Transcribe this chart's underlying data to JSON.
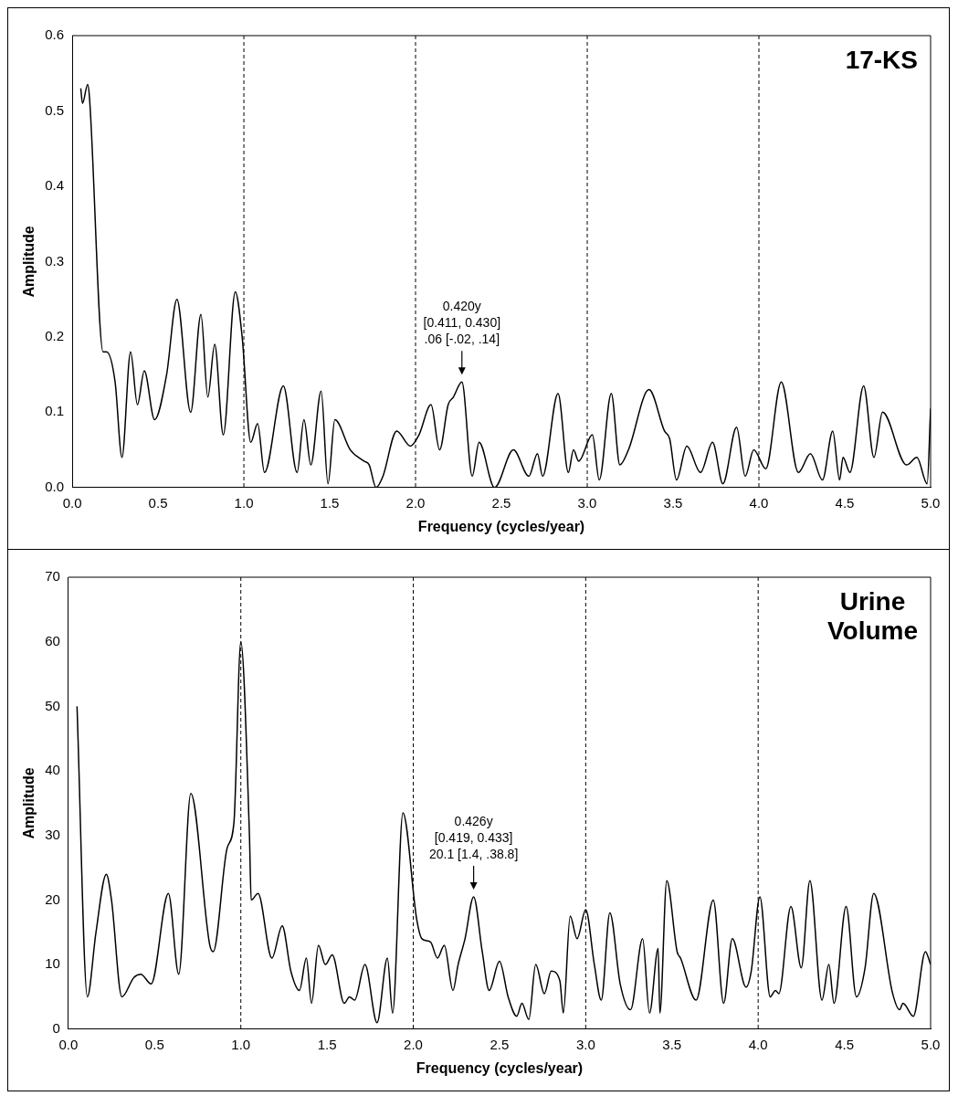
{
  "chart_data": [
    {
      "type": "line",
      "title": "17-KS",
      "xlabel": "Frequency (cycles/year)",
      "ylabel": "Amplitude",
      "x": [
        0.05,
        0.06,
        0.09,
        0.1,
        0.18,
        0.2,
        0.25,
        0.29,
        0.34,
        0.38,
        0.42,
        0.48,
        0.55,
        0.61,
        0.69,
        0.75,
        0.79,
        0.83,
        0.88,
        0.95,
        0.99,
        1.04,
        1.08,
        1.12,
        1.23,
        1.31,
        1.35,
        1.39,
        1.45,
        1.49,
        1.53,
        1.62,
        1.7,
        1.73,
        1.77,
        1.81,
        1.89,
        1.97,
        2.02,
        2.09,
        2.14,
        2.19,
        2.22,
        2.27,
        2.33,
        2.37,
        2.46,
        2.57,
        2.66,
        2.71,
        2.74,
        2.83,
        2.89,
        2.92,
        2.95,
        3.03,
        3.07,
        3.14,
        3.19,
        3.24,
        3.36,
        3.45,
        3.48,
        3.52,
        3.58,
        3.66,
        3.73,
        3.79,
        3.87,
        3.92,
        3.97,
        4.04,
        4.13,
        4.23,
        4.3,
        4.37,
        4.43,
        4.47,
        4.49,
        4.53,
        4.61,
        4.67,
        4.72,
        4.86,
        4.92,
        4.98,
        5.0
      ],
      "series": [
        {
          "color": "#000000",
          "values": [
            0.53,
            0.51,
            0.535,
            0.52,
            0.18,
            0.18,
            0.14,
            0.04,
            0.18,
            0.11,
            0.155,
            0.09,
            0.15,
            0.25,
            0.1,
            0.23,
            0.12,
            0.19,
            0.07,
            0.26,
            0.2,
            0.06,
            0.085,
            0.02,
            0.135,
            0.02,
            0.09,
            0.03,
            0.128,
            0.005,
            0.09,
            0.05,
            0.035,
            0.03,
            0.0,
            0.015,
            0.075,
            0.055,
            0.07,
            0.11,
            0.05,
            0.11,
            0.12,
            0.14,
            0.015,
            0.06,
            0.0,
            0.05,
            0.015,
            0.045,
            0.015,
            0.125,
            0.02,
            0.05,
            0.035,
            0.07,
            0.01,
            0.125,
            0.03,
            0.05,
            0.13,
            0.075,
            0.065,
            0.01,
            0.055,
            0.02,
            0.06,
            0.005,
            0.08,
            0.015,
            0.05,
            0.025,
            0.14,
            0.02,
            0.045,
            0.01,
            0.075,
            0.01,
            0.04,
            0.02,
            0.135,
            0.04,
            0.1,
            0.03,
            0.04,
            0.005,
            0.105
          ]
        }
      ],
      "xlim": [
        0,
        5
      ],
      "xticks": [
        {
          "value": 0,
          "label": "0.0"
        },
        0.5,
        {
          "value": 1,
          "label": "1.0"
        },
        1.5,
        {
          "value": 2,
          "label": "2.0"
        },
        2.5,
        {
          "value": 3,
          "label": "3.0"
        },
        3.5,
        {
          "value": 4,
          "label": "4.0"
        },
        4.5,
        {
          "value": 5,
          "label": "5.0"
        }
      ],
      "ylim": [
        0,
        0.6
      ],
      "yticks": [
        {
          "value": 0,
          "label": "0.0"
        },
        0.1,
        0.2,
        0.3,
        0.4,
        0.5,
        0.6
      ],
      "ref_lines": [
        {
          "axis": "x",
          "value": 1,
          "line_style": "dashed"
        },
        {
          "axis": "x",
          "value": 2,
          "line_style": "dashed"
        },
        {
          "axis": "x",
          "value": 3,
          "line_style": "dashed"
        },
        {
          "axis": "x",
          "value": 4,
          "line_style": "dashed"
        }
      ],
      "annotations": [
        {
          "text": "0.420y\n[0.411, 0.430]\n.06 [-.02, .14]",
          "x": 2.27,
          "y": 0.14
        }
      ],
      "grid": false,
      "legend": false,
      "marker": "none",
      "line_style": "solid"
    },
    {
      "type": "line",
      "title": "Urine\nVolume",
      "xlabel": "Frequency (cycles/year)",
      "ylabel": "Amplitude",
      "x": [
        0.05,
        0.11,
        0.16,
        0.22,
        0.25,
        0.31,
        0.38,
        0.42,
        0.48,
        0.58,
        0.64,
        0.71,
        0.82,
        0.84,
        0.92,
        0.96,
        1.0,
        1.05,
        1.06,
        1.1,
        1.18,
        1.24,
        1.29,
        1.34,
        1.38,
        1.41,
        1.45,
        1.49,
        1.53,
        1.6,
        1.63,
        1.66,
        1.72,
        1.79,
        1.85,
        1.88,
        1.94,
        2.02,
        2.05,
        2.1,
        2.14,
        2.18,
        2.23,
        2.26,
        2.3,
        2.35,
        2.4,
        2.44,
        2.5,
        2.55,
        2.6,
        2.63,
        2.67,
        2.71,
        2.76,
        2.8,
        2.85,
        2.87,
        2.91,
        2.95,
        3.0,
        3.05,
        3.09,
        3.14,
        3.2,
        3.26,
        3.33,
        3.37,
        3.42,
        3.43,
        3.47,
        3.53,
        3.55,
        3.64,
        3.74,
        3.8,
        3.85,
        3.93,
        3.96,
        4.01,
        4.07,
        4.1,
        4.12,
        4.19,
        4.25,
        4.3,
        4.37,
        4.41,
        4.44,
        4.51,
        4.57,
        4.62,
        4.67,
        4.78,
        4.82,
        4.84,
        4.9,
        4.97,
        5.0
      ],
      "series": [
        {
          "color": "#000000",
          "values": [
            50,
            5,
            15,
            24,
            20,
            5,
            8,
            8.5,
            7,
            21,
            8.5,
            36.5,
            13,
            12,
            28,
            32,
            60,
            30,
            20,
            21,
            11,
            16,
            9,
            6,
            11,
            4,
            13,
            10,
            11.5,
            4,
            5,
            4.5,
            10,
            1,
            11,
            2.5,
            33.5,
            17,
            14,
            13.5,
            11,
            13,
            6,
            10,
            14,
            20.5,
            12,
            6,
            10.5,
            5,
            2,
            4,
            1.5,
            10,
            5.5,
            9,
            7.5,
            2.5,
            17.5,
            14,
            18.5,
            10,
            4.5,
            18,
            7,
            3,
            14,
            2.5,
            12.5,
            2.5,
            23,
            12,
            11,
            4.5,
            20,
            4,
            14,
            6.5,
            9,
            20.5,
            5,
            6,
            5.5,
            19,
            9.5,
            23,
            4.5,
            10,
            4,
            19,
            5,
            9.5,
            21,
            5.5,
            3,
            4,
            2,
            12,
            10
          ]
        }
      ],
      "xlim": [
        0,
        5
      ],
      "xticks": [
        {
          "value": 0,
          "label": "0.0"
        },
        0.5,
        {
          "value": 1,
          "label": "1.0"
        },
        1.5,
        {
          "value": 2,
          "label": "2.0"
        },
        2.5,
        {
          "value": 3,
          "label": "3.0"
        },
        3.5,
        {
          "value": 4,
          "label": "4.0"
        },
        4.5,
        {
          "value": 5,
          "label": "5.0"
        }
      ],
      "ylim": [
        0,
        70
      ],
      "yticks": [
        0,
        10,
        20,
        30,
        40,
        50,
        60,
        70
      ],
      "ref_lines": [
        {
          "axis": "x",
          "value": 1,
          "line_style": "dashed"
        },
        {
          "axis": "x",
          "value": 2,
          "line_style": "dashed"
        },
        {
          "axis": "x",
          "value": 3,
          "line_style": "dashed"
        },
        {
          "axis": "x",
          "value": 4,
          "line_style": "dashed"
        }
      ],
      "annotations": [
        {
          "text": "0.426y\n[0.419, 0.433]\n20.1 [1.4, .38.8]",
          "x": 2.35,
          "y": 20.5
        }
      ],
      "grid": false,
      "legend": false,
      "marker": "none",
      "line_style": "solid"
    }
  ]
}
